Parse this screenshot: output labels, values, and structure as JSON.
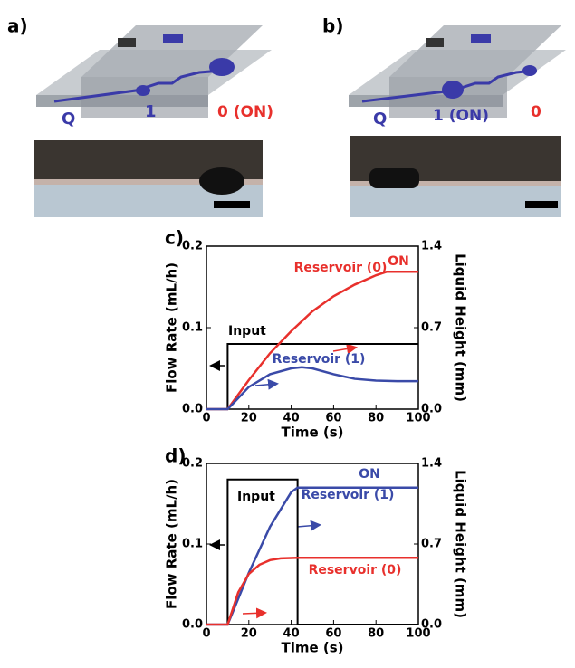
{
  "panels": [
    {
      "label": "a)",
      "texts": [
        {
          "text": "Q",
          "color": "#3a3aa8"
        },
        {
          "text": "1",
          "color": "#3a3aa8"
        },
        {
          "text": "0 (ON)",
          "color": "#e8302c"
        }
      ]
    },
    {
      "label": "b)",
      "texts": [
        {
          "text": "Q",
          "color": "#3a3aa8"
        },
        {
          "text": "1 (ON)",
          "color": "#3a3aa8"
        },
        {
          "text": "0",
          "color": "#e8302c"
        }
      ]
    }
  ],
  "chart_data": [
    {
      "type": "line",
      "label": "c)",
      "xlabel": "Time (s)",
      "ylabel": "Flow Rate (mL/h)",
      "y2label": "Liquid Height (mm)",
      "xlim": [
        0,
        100
      ],
      "xticks": [
        0,
        20,
        40,
        60,
        80,
        100
      ],
      "ylim": [
        0,
        0.2
      ],
      "yticks": [
        {
          "value": 0,
          "label": "0.0"
        },
        0.1,
        0.2
      ],
      "y2lim": [
        0,
        1.4
      ],
      "y2ticks": [
        {
          "value": 0,
          "label": "0.0"
        },
        0.7,
        1.4
      ],
      "annotations": [
        {
          "text": "ON",
          "color": "#e8302c"
        }
      ],
      "series": [
        {
          "name": "Input",
          "color": "#000000",
          "x": [
            0,
            10,
            10,
            100
          ],
          "values": [
            0,
            0,
            0.08,
            0.08
          ]
        },
        {
          "name": "Reservoir (0)",
          "color": "#e8302c",
          "axis": "y2",
          "x": [
            0,
            10,
            20,
            30,
            40,
            50,
            60,
            70,
            80,
            85,
            100
          ],
          "values": [
            0,
            0,
            0.25,
            0.48,
            0.67,
            0.84,
            0.97,
            1.07,
            1.15,
            1.18,
            1.18
          ]
        },
        {
          "name": "Reservoir (1)",
          "color": "#3a4aa8",
          "axis": "y2",
          "x": [
            0,
            10,
            20,
            30,
            40,
            45,
            50,
            60,
            70,
            80,
            90,
            100
          ],
          "values": [
            0,
            0,
            0.19,
            0.3,
            0.35,
            0.36,
            0.35,
            0.3,
            0.26,
            0.245,
            0.24,
            0.24
          ]
        }
      ]
    },
    {
      "type": "line",
      "label": "d)",
      "xlabel": "Time (s)",
      "ylabel": "Flow Rate (mL/h)",
      "y2label": "Liquid Height (mm)",
      "xlim": [
        0,
        100
      ],
      "xticks": [
        0,
        20,
        40,
        60,
        80,
        100
      ],
      "ylim": [
        0,
        0.2
      ],
      "yticks": [
        {
          "value": 0,
          "label": "0.0"
        },
        0.1,
        0.2
      ],
      "y2lim": [
        0,
        1.4
      ],
      "y2ticks": [
        {
          "value": 0,
          "label": "0.0"
        },
        0.7,
        1.4
      ],
      "annotations": [
        {
          "text": "ON",
          "color": "#3a4aa8"
        }
      ],
      "series": [
        {
          "name": "Input",
          "color": "#000000",
          "x": [
            0,
            10,
            10,
            43,
            43,
            100
          ],
          "values": [
            0,
            0,
            0.18,
            0.18,
            0,
            0
          ]
        },
        {
          "name": "Reservoir (1)",
          "color": "#3a4aa8",
          "axis": "y2",
          "x": [
            0,
            10,
            20,
            30,
            40,
            43,
            100
          ],
          "values": [
            0,
            0,
            0.45,
            0.85,
            1.15,
            1.19,
            1.19
          ]
        },
        {
          "name": "Reservoir (0)",
          "color": "#e8302c",
          "axis": "y2",
          "x": [
            0,
            10,
            15,
            20,
            25,
            30,
            35,
            43,
            100
          ],
          "values": [
            0,
            0,
            0.28,
            0.44,
            0.52,
            0.56,
            0.575,
            0.58,
            0.58
          ]
        }
      ]
    }
  ]
}
